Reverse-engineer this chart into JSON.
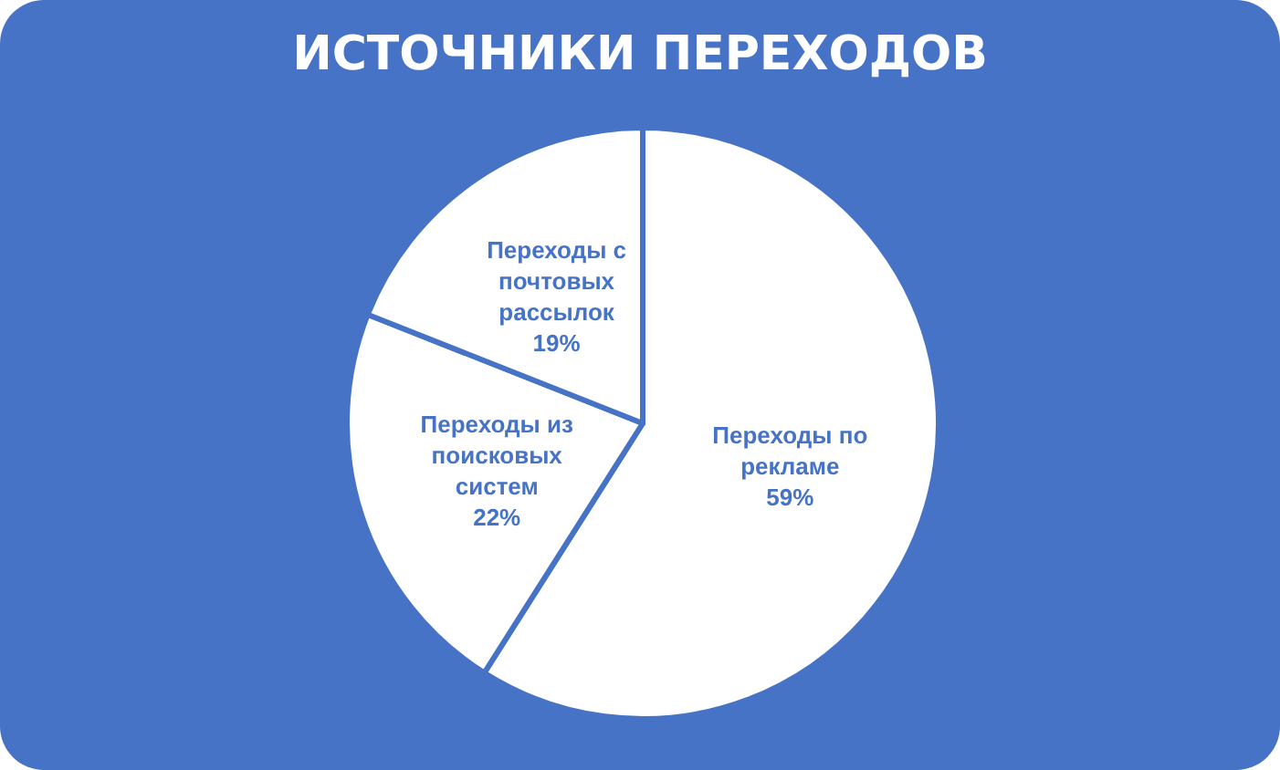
{
  "chart_data": {
    "type": "pie",
    "title": "ИСТОЧНИКИ ПЕРЕХОДОВ",
    "categories": [
      "Переходы по рекламе",
      "Переходы из поисковых систем",
      "Переходы с почтовых рассылок"
    ],
    "values": [
      59,
      22,
      19
    ],
    "value_labels": [
      "59%",
      "22%",
      "19%"
    ],
    "colors": [
      "#ffffff",
      "#ffffff",
      "#ffffff"
    ],
    "legend": false
  }
}
